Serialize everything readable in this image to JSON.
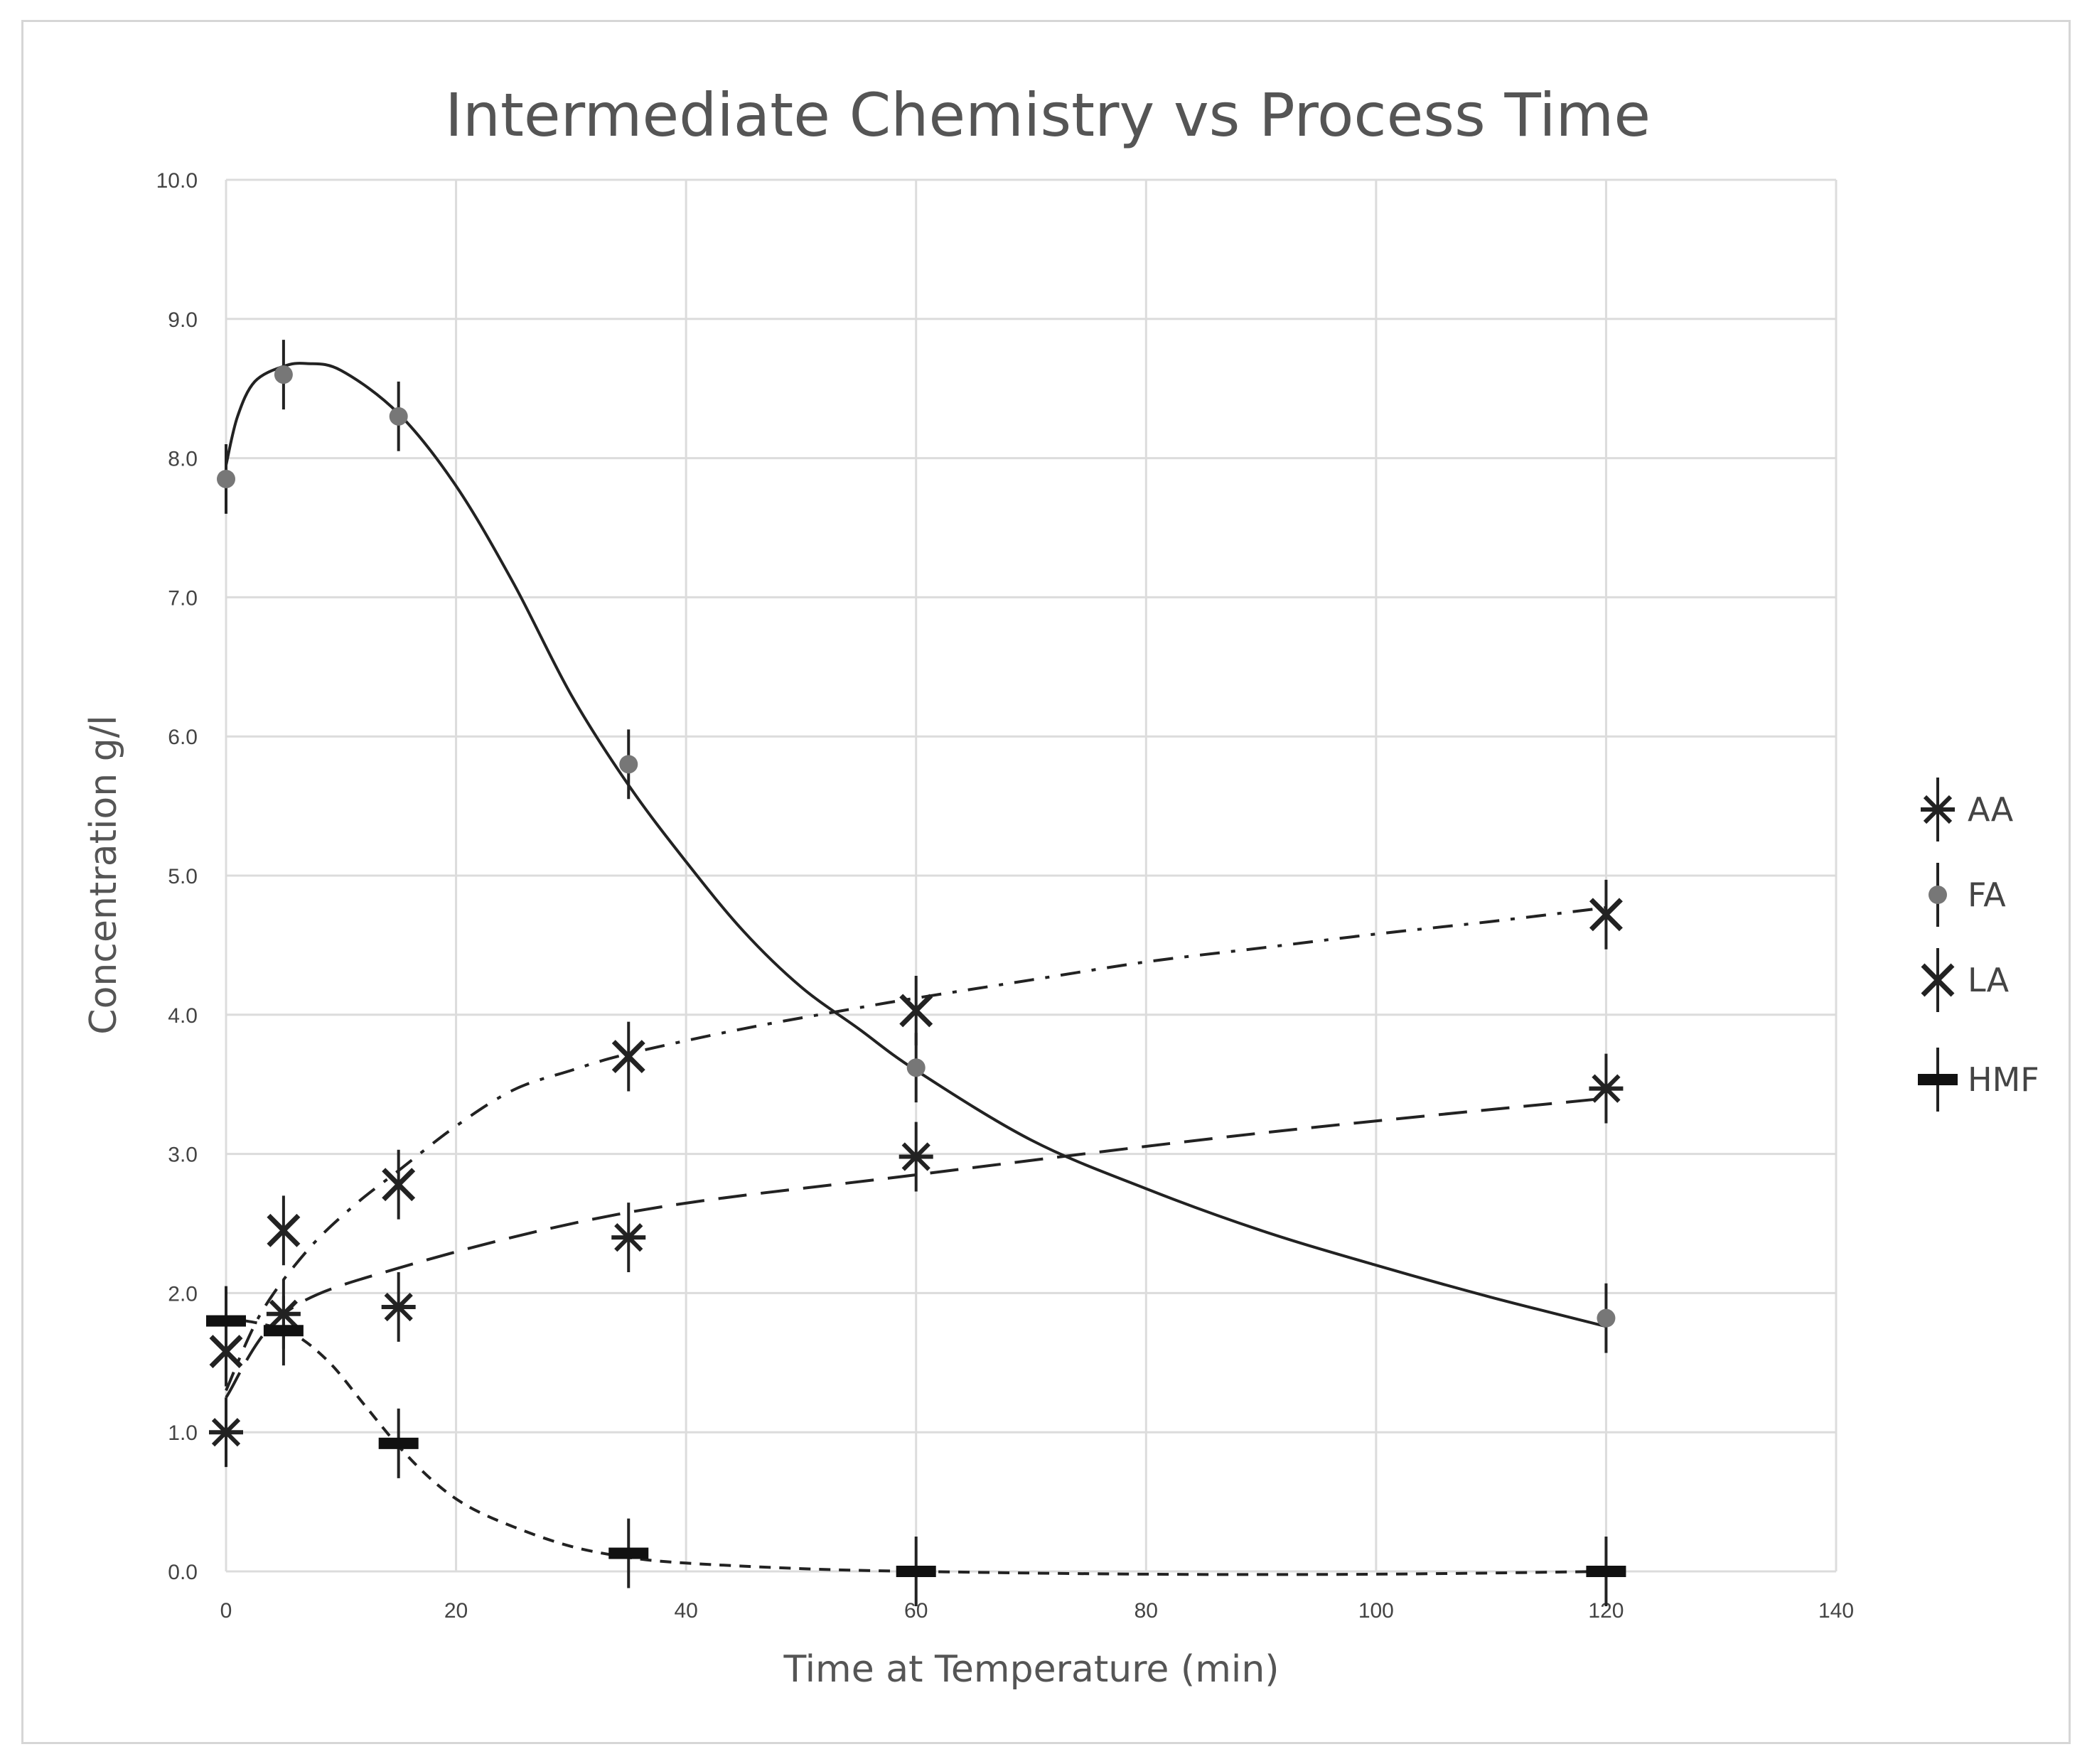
{
  "chart_data": {
    "type": "scatter",
    "title": "Intermediate Chemistry vs Process Time",
    "xlabel": "Time at Temperature (min)",
    "ylabel": "Concentration g/l",
    "xlim": [
      0,
      140
    ],
    "ylim": [
      0,
      10
    ],
    "x_ticks": [
      0,
      20,
      40,
      60,
      80,
      100,
      120,
      140
    ],
    "y_ticks": [
      0,
      1,
      2,
      3,
      4,
      5,
      6,
      7,
      8,
      9,
      10
    ],
    "y_tick_decimals": 1,
    "grid": true,
    "legend_position": "right",
    "series": [
      {
        "name": "AA",
        "marker": "asterisk",
        "trendline": "dashed",
        "x": [
          0,
          5,
          15,
          35,
          60,
          120
        ],
        "y": [
          1.0,
          1.85,
          1.9,
          2.4,
          2.98,
          3.47
        ],
        "error": [
          0.25,
          0.25,
          0.25,
          0.25,
          0.25,
          0.25
        ],
        "fit": [
          [
            0,
            1.25
          ],
          [
            5,
            1.85
          ],
          [
            15,
            2.18
          ],
          [
            35,
            2.58
          ],
          [
            60,
            2.85
          ],
          [
            90,
            3.15
          ],
          [
            120,
            3.4
          ]
        ]
      },
      {
        "name": "FA",
        "marker": "circle",
        "color": "#777777",
        "trendline": "solid",
        "x": [
          0,
          5,
          15,
          35,
          60,
          120
        ],
        "y": [
          7.85,
          8.6,
          8.3,
          5.8,
          3.62,
          1.82
        ],
        "error": [
          0.25,
          0.25,
          0.25,
          0.25,
          0.25,
          0.25
        ],
        "fit": [
          [
            0,
            7.95
          ],
          [
            1,
            8.3
          ],
          [
            2.5,
            8.55
          ],
          [
            5,
            8.66
          ],
          [
            7,
            8.68
          ],
          [
            10,
            8.63
          ],
          [
            15,
            8.32
          ],
          [
            20,
            7.8
          ],
          [
            25,
            7.1
          ],
          [
            30,
            6.3
          ],
          [
            35,
            5.65
          ],
          [
            40,
            5.1
          ],
          [
            45,
            4.6
          ],
          [
            50,
            4.2
          ],
          [
            55,
            3.9
          ],
          [
            60,
            3.6
          ],
          [
            70,
            3.1
          ],
          [
            80,
            2.75
          ],
          [
            90,
            2.45
          ],
          [
            100,
            2.2
          ],
          [
            110,
            1.97
          ],
          [
            120,
            1.76
          ]
        ]
      },
      {
        "name": "LA",
        "marker": "x",
        "trendline": "dash-dot",
        "x": [
          0,
          5,
          15,
          35,
          60,
          120
        ],
        "y": [
          1.58,
          2.45,
          2.78,
          3.7,
          4.03,
          4.72
        ],
        "error": [
          0.25,
          0.25,
          0.25,
          0.25,
          0.25,
          0.25
        ],
        "fit": [
          [
            0,
            1.3
          ],
          [
            3,
            1.85
          ],
          [
            7,
            2.3
          ],
          [
            11,
            2.62
          ],
          [
            15,
            2.88
          ],
          [
            20,
            3.2
          ],
          [
            25,
            3.46
          ],
          [
            30,
            3.6
          ],
          [
            35,
            3.72
          ],
          [
            45,
            3.9
          ],
          [
            55,
            4.05
          ],
          [
            60,
            4.12
          ],
          [
            70,
            4.25
          ],
          [
            80,
            4.38
          ],
          [
            90,
            4.48
          ],
          [
            100,
            4.58
          ],
          [
            110,
            4.67
          ],
          [
            120,
            4.77
          ]
        ]
      },
      {
        "name": "HMF",
        "marker": "bar",
        "trendline": "dotted",
        "x": [
          0,
          5,
          15,
          35,
          60,
          120
        ],
        "y": [
          1.8,
          1.73,
          0.92,
          0.13,
          0.0,
          0.0
        ],
        "error": [
          0.25,
          0.25,
          0.25,
          0.25,
          0.25,
          0.25
        ],
        "fit": [
          [
            0,
            1.82
          ],
          [
            3,
            1.78
          ],
          [
            6,
            1.7
          ],
          [
            9,
            1.5
          ],
          [
            12,
            1.2
          ],
          [
            15,
            0.9
          ],
          [
            18,
            0.65
          ],
          [
            21,
            0.47
          ],
          [
            25,
            0.32
          ],
          [
            30,
            0.18
          ],
          [
            35,
            0.1
          ],
          [
            40,
            0.06
          ],
          [
            50,
            0.02
          ],
          [
            60,
            0.0
          ],
          [
            80,
            -0.02
          ],
          [
            100,
            -0.02
          ],
          [
            120,
            0.0
          ]
        ]
      }
    ]
  }
}
